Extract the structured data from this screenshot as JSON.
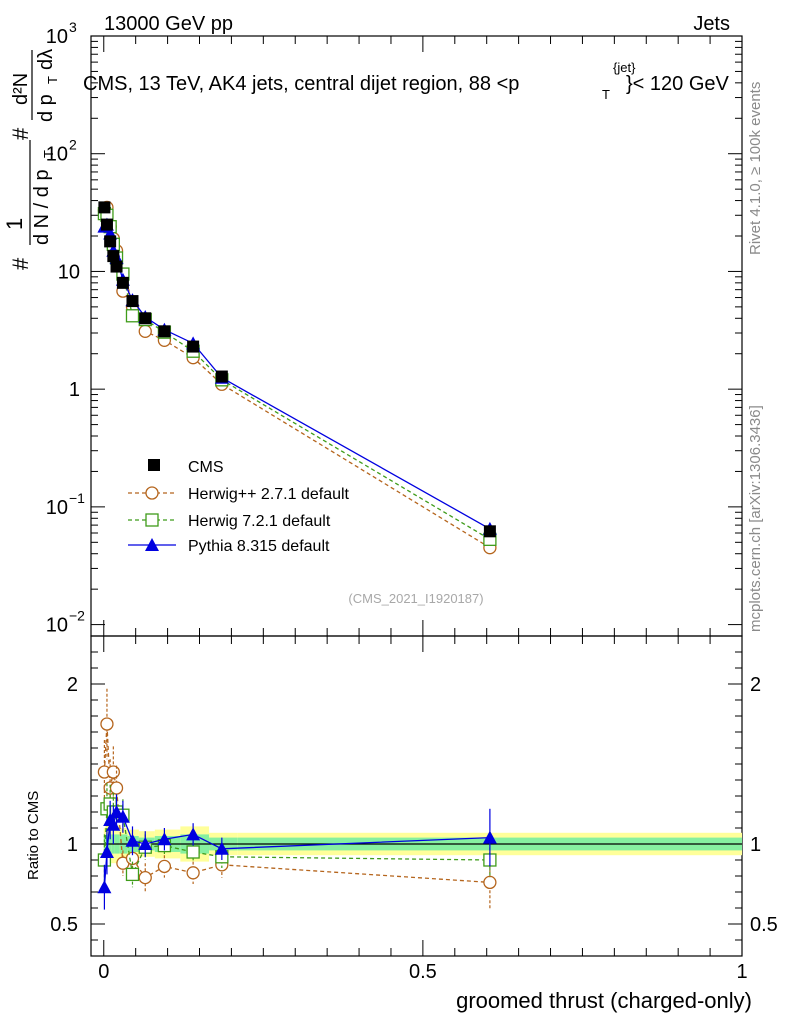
{
  "header": {
    "left": "13000 GeV pp",
    "right": "Jets",
    "title_main": "CMS, 13 TeV, AK4 jets, central dijet region, 88 <p",
    "title_sup": "{jet}",
    "title_sub": "T",
    "title_tail": "}< 120 GeV"
  },
  "side": {
    "rivet": "Rivet 4.1.0, ≥ 100k events",
    "site": "mcplots.cern.ch [arXiv:1306.3436]"
  },
  "watermark": "(CMS_2021_I1920187)",
  "colors": {
    "cms": "#000000",
    "herwigpp": "#b5651d",
    "herwig7": "#3f9c1a",
    "pythia": "#0000e0",
    "band_inner": "#86f0a0",
    "band_outer": "#ffff9a"
  },
  "chart_data": [
    {
      "type": "scatter",
      "panel": "main",
      "yscale": "log",
      "xlim": [
        -0.02,
        1.0
      ],
      "ylim": [
        0.008,
        1000
      ],
      "ylabel": {
        "hash1": "#",
        "one": "1",
        "dN": "d N / d p",
        "dN_sub": "T",
        "hash2": "#",
        "d2N": "d²N",
        "dpT": "d p",
        "dpT_sub": "T",
        "dlambda": "dλ"
      },
      "yticks": [
        {
          "value": 0.01,
          "base": "10",
          "exp": "−2"
        },
        {
          "value": 0.1,
          "base": "10",
          "exp": "−1"
        },
        {
          "value": 1,
          "base": "1",
          "exp": ""
        },
        {
          "value": 10,
          "base": "10",
          "exp": ""
        },
        {
          "value": 100,
          "base": "10",
          "exp": "2"
        },
        {
          "value": 1000,
          "base": "10",
          "exp": "3"
        }
      ],
      "x": [
        0.001,
        0.005,
        0.01,
        0.015,
        0.02,
        0.03,
        0.045,
        0.065,
        0.095,
        0.14,
        0.185,
        0.605
      ],
      "series": [
        {
          "name": "CMS",
          "key": "cms",
          "marker": "square-filled",
          "values": [
            35,
            25,
            18,
            13.5,
            11,
            8.0,
            5.6,
            4.0,
            3.1,
            2.3,
            1.28,
            0.062
          ]
        },
        {
          "name": "Herwig++ 2.7.1 default",
          "key": "herwigpp",
          "marker": "circle-open",
          "dash": true,
          "values": [
            33,
            35,
            24,
            19,
            15,
            6.8,
            5.0,
            3.1,
            2.6,
            1.85,
            1.1,
            0.045
          ]
        },
        {
          "name": "Herwig 7.2.1 default",
          "key": "herwig7",
          "marker": "square-open",
          "dash": true,
          "values": [
            31,
            30,
            24,
            17,
            13,
            9.5,
            4.2,
            3.9,
            3.05,
            2.1,
            1.2,
            0.053
          ]
        },
        {
          "name": "Pythia 8.315 default",
          "key": "pythia",
          "marker": "triangle-filled",
          "dash": false,
          "values": [
            24,
            25,
            21,
            15,
            13,
            8.5,
            5.7,
            4.1,
            3.2,
            2.45,
            1.25,
            0.065
          ]
        }
      ]
    },
    {
      "type": "scatter",
      "panel": "ratio",
      "xlabel": "groomed thrust (charged-only)",
      "ylabel": "Ratio to CMS",
      "xlim": [
        -0.02,
        1.0
      ],
      "ylim": [
        0.3,
        2.3
      ],
      "yticks": [
        0.5,
        1,
        2
      ],
      "xticks": [
        0,
        0.5,
        1
      ],
      "xtick_labels": [
        "0",
        "0.5",
        "1"
      ],
      "x": [
        0.001,
        0.005,
        0.01,
        0.015,
        0.02,
        0.03,
        0.045,
        0.065,
        0.095,
        0.14,
        0.185,
        0.605
      ],
      "band_edges": [
        0.0,
        0.0025,
        0.0075,
        0.0125,
        0.0175,
        0.025,
        0.0375,
        0.055,
        0.08,
        0.12,
        0.165,
        0.21,
        1.0
      ],
      "band_inner": [
        0.05,
        0.06,
        0.06,
        0.06,
        0.06,
        0.06,
        0.05,
        0.04,
        0.05,
        0.06,
        0.04,
        0.04
      ],
      "band_outer": [
        0.1,
        0.12,
        0.12,
        0.12,
        0.12,
        0.1,
        0.09,
        0.08,
        0.09,
        0.11,
        0.07,
        0.07
      ],
      "series": [
        {
          "name": "Herwig++ 2.7.1 default",
          "key": "herwigpp",
          "values": [
            1.45,
            1.75,
            1.35,
            1.45,
            1.35,
            0.88,
            0.91,
            0.79,
            0.86,
            0.82,
            0.87,
            0.76
          ],
          "errors": [
            0.2,
            0.22,
            0.18,
            0.16,
            0.14,
            0.08,
            0.08,
            0.09,
            0.07,
            0.07,
            0.08,
            0.17
          ]
        },
        {
          "name": "Herwig 7.2.1 default",
          "key": "herwig7",
          "values": [
            0.9,
            1.22,
            1.25,
            1.2,
            1.2,
            1.18,
            0.81,
            0.98,
            0.99,
            0.95,
            0.92,
            0.9
          ],
          "errors": [
            0.16,
            0.16,
            0.12,
            0.12,
            0.11,
            0.1,
            0.08,
            0.08,
            0.06,
            0.06,
            0.07,
            0.11
          ]
        },
        {
          "name": "Pythia 8.315 default",
          "key": "pythia",
          "values": [
            0.73,
            0.95,
            1.15,
            1.12,
            1.2,
            1.17,
            1.02,
            1.0,
            1.03,
            1.06,
            0.97,
            1.04
          ],
          "errors": [
            0.14,
            0.14,
            0.12,
            0.12,
            0.11,
            0.1,
            0.09,
            0.08,
            0.07,
            0.07,
            0.07,
            0.18
          ]
        }
      ]
    }
  ]
}
